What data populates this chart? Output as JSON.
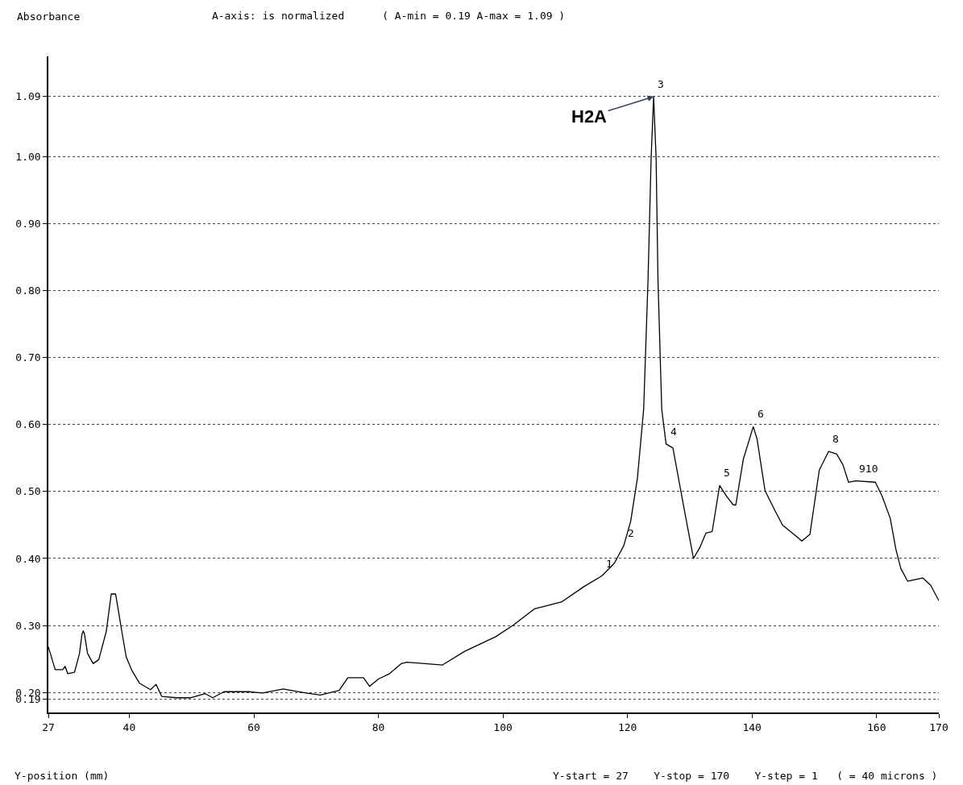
{
  "chart_data": {
    "type": "line",
    "title": "A-axis: is normalized      ( A-min = 0.19 A-max = 1.09 )",
    "ylabel": "Absorbance",
    "xlabel": "Y-position (mm)",
    "annotations": [
      {
        "text": "H2A",
        "x": 124.2,
        "y": 1.09
      },
      {
        "text": "1",
        "x": 115.9,
        "y": 0.374
      },
      {
        "text": "2",
        "x": 119.4,
        "y": 0.419
      },
      {
        "text": "3",
        "x": 124.2,
        "y": 1.09
      },
      {
        "text": "4",
        "x": 126.2,
        "y": 0.571
      },
      {
        "text": "5",
        "x": 134.8,
        "y": 0.509
      },
      {
        "text": "6",
        "x": 140.2,
        "y": 0.597
      },
      {
        "text": "8",
        "x": 152.3,
        "y": 0.56
      },
      {
        "text": "910",
        "x": 156.6,
        "y": 0.516
      },
      "Y-start = 27    Y-stop = 170    Y-step = 1   ( = 40 microns )"
    ],
    "x": [
      27,
      28.1,
      29.3,
      29.7,
      30.1,
      31.2,
      32.0,
      32.4,
      32.6,
      32.8,
      33.3,
      34.2,
      35.1,
      36.3,
      37.1,
      37.8,
      38.8,
      39.5,
      40.4,
      41.6,
      43.4,
      44.3,
      45.2,
      47.6,
      49.9,
      52.2,
      53.4,
      55.2,
      59.2,
      61.4,
      64.7,
      68.4,
      70.7,
      73.7,
      75.1,
      77.6,
      78.6,
      80,
      81.8,
      83.7,
      84.6,
      90.3,
      93.8,
      98.8,
      101.6,
      105.1,
      109.4,
      113,
      115.9,
      117.9,
      119.4,
      120.5,
      121.6,
      122.6,
      123.3,
      123.8,
      124.2,
      124.6,
      124.9,
      125.5,
      126.2,
      127.3,
      129.1,
      130.6,
      131.6,
      132.6,
      133.6,
      134.8,
      135.9,
      137,
      137.4,
      138.6,
      140.2,
      140.8,
      142.1,
      143.6,
      144.9,
      147,
      148,
      149.3,
      150.8,
      152.3,
      153.6,
      154.6,
      155.5,
      156.6,
      159.8,
      160.9,
      162.2,
      163.1,
      163.9,
      165,
      167.4,
      168.7,
      170
    ],
    "series": [
      {
        "color": "#000000",
        "values": [
          0.268,
          0.234,
          0.234,
          0.239,
          0.228,
          0.23,
          0.258,
          0.287,
          0.292,
          0.287,
          0.258,
          0.243,
          0.249,
          0.291,
          0.347,
          0.347,
          0.291,
          0.253,
          0.233,
          0.214,
          0.204,
          0.212,
          0.194,
          0.192,
          0.192,
          0.198,
          0.192,
          0.201,
          0.201,
          0.199,
          0.205,
          0.199,
          0.196,
          0.203,
          0.222,
          0.222,
          0.209,
          0.22,
          0.228,
          0.243,
          0.245,
          0.241,
          0.261,
          0.283,
          0.3,
          0.325,
          0.335,
          0.358,
          0.374,
          0.393,
          0.419,
          0.455,
          0.52,
          0.623,
          0.816,
          0.998,
          1.09,
          0.998,
          0.816,
          0.623,
          0.571,
          0.565,
          0.474,
          0.4,
          0.416,
          0.438,
          0.44,
          0.509,
          0.493,
          0.48,
          0.48,
          0.548,
          0.597,
          0.579,
          0.501,
          0.473,
          0.45,
          0.434,
          0.426,
          0.436,
          0.532,
          0.56,
          0.556,
          0.54,
          0.514,
          0.516,
          0.514,
          0.493,
          0.46,
          0.414,
          0.385,
          0.366,
          0.371,
          0.36,
          0.337
        ]
      }
    ],
    "xlim": [
      27,
      170
    ],
    "xticks": [
      27,
      40,
      60,
      80,
      100,
      120,
      140,
      160,
      170
    ],
    "ylim": [
      0.17,
      1.15
    ],
    "yticks": [
      {
        "value": 0.19,
        "label": "0.19"
      },
      {
        "value": 0.2,
        "label": "0.20"
      },
      {
        "value": 0.3,
        "label": "0.30"
      },
      {
        "value": 0.4,
        "label": "0.40"
      },
      {
        "value": 0.5,
        "label": "0.50"
      },
      {
        "value": 0.6,
        "label": "0.60"
      },
      {
        "value": 0.7,
        "label": "0.70"
      },
      {
        "value": 0.8,
        "label": "0.80"
      },
      {
        "value": 0.9,
        "label": "0.90"
      },
      {
        "value": 1.0,
        "label": "1.00"
      },
      {
        "value": 1.09,
        "label": "1.09"
      }
    ],
    "grid": "y",
    "marker": "none",
    "line_style": "solid"
  }
}
